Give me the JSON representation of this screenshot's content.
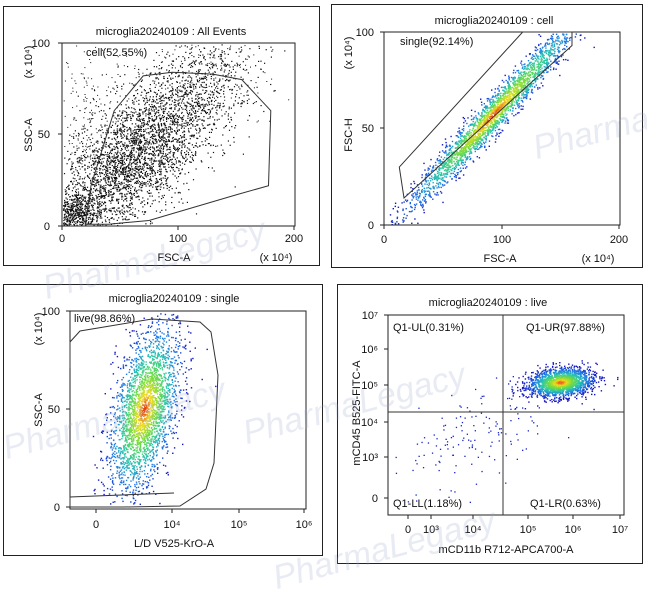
{
  "chart_data": [
    {
      "type": "scatter",
      "title": "microglia20240109 : All Events",
      "xlabel": "FSC-A",
      "ylabel": "SSC-A",
      "x_multiplier": "(x 10⁴)",
      "y_multiplier": "(x 10⁴)",
      "xlim": [
        0,
        200
      ],
      "ylim": [
        0,
        100
      ],
      "x_ticks": [
        "0",
        "100",
        "200"
      ],
      "y_ticks": [
        "0",
        "50",
        "100"
      ],
      "color_scheme": "black dots",
      "gate": {
        "label": "cell(52.55%)",
        "percent": 52.55,
        "shape": "polygon",
        "vertices": [
          [
            20,
            1
          ],
          [
            25,
            22
          ],
          [
            45,
            63
          ],
          [
            70,
            82
          ],
          [
            95,
            84
          ],
          [
            130,
            83
          ],
          [
            155,
            80
          ],
          [
            180,
            63
          ],
          [
            178,
            22
          ],
          [
            150,
            17
          ],
          [
            75,
            3
          ],
          [
            40,
            1
          ]
        ]
      }
    },
    {
      "type": "scatter",
      "title": "microglia20240109 : cell",
      "xlabel": "FSC-A",
      "ylabel": "FSC-H",
      "x_multiplier": "(x 10⁴)",
      "y_multiplier": "(x 10⁴)",
      "xlim": [
        0,
        200
      ],
      "ylim": [
        0,
        100
      ],
      "x_ticks": [
        "0",
        "100",
        "200"
      ],
      "y_ticks": [
        "0",
        "50",
        "100"
      ],
      "color_scheme": "density (blue-green-yellow-red)",
      "gate": {
        "label": "single(92.14%)",
        "percent": 92.14,
        "shape": "polygon",
        "vertices": [
          [
            13,
            30
          ],
          [
            118,
            100
          ],
          [
            160,
            100
          ],
          [
            160,
            93
          ],
          [
            17,
            14
          ]
        ]
      }
    },
    {
      "type": "scatter",
      "title": "microglia20240109 : single",
      "xlabel": "L/D V525-KrO-A",
      "ylabel": "SSC-A",
      "y_multiplier": "(x 10⁴)",
      "x_scale": "biexponential",
      "ylim": [
        0,
        100
      ],
      "x_ticks": [
        "0",
        "10⁴",
        "10⁵",
        "10⁶"
      ],
      "y_ticks": [
        "0",
        "50",
        "100"
      ],
      "color_scheme": "density (blue-green-yellow-red)",
      "gate": {
        "label": "live(98.86%)",
        "percent": 98.86
      }
    },
    {
      "type": "scatter",
      "title": "microglia20240109 : live",
      "xlabel": "mCD11b R712-APCA700-A",
      "ylabel": "mCD45 B525-FITC-A",
      "x_scale": "biexponential",
      "y_scale": "biexponential",
      "x_ticks": [
        "0",
        "10³",
        "10⁴",
        "10⁵",
        "10⁶",
        "10⁷"
      ],
      "y_ticks": [
        "0",
        "10³",
        "10⁴",
        "10⁵",
        "10⁶",
        "10⁷"
      ],
      "color_scheme": "density (blue-green-yellow-red)",
      "quadrants": [
        {
          "label": "Q1-UL(0.31%)",
          "percent": 0.31
        },
        {
          "label": "Q1-UR(97.88%)",
          "percent": 97.88
        },
        {
          "label": "Q1-LL(1.18%)",
          "percent": 1.18
        },
        {
          "label": "Q1-LR(0.63%)",
          "percent": 0.63
        }
      ]
    }
  ],
  "watermark": "PharmaLegacy"
}
